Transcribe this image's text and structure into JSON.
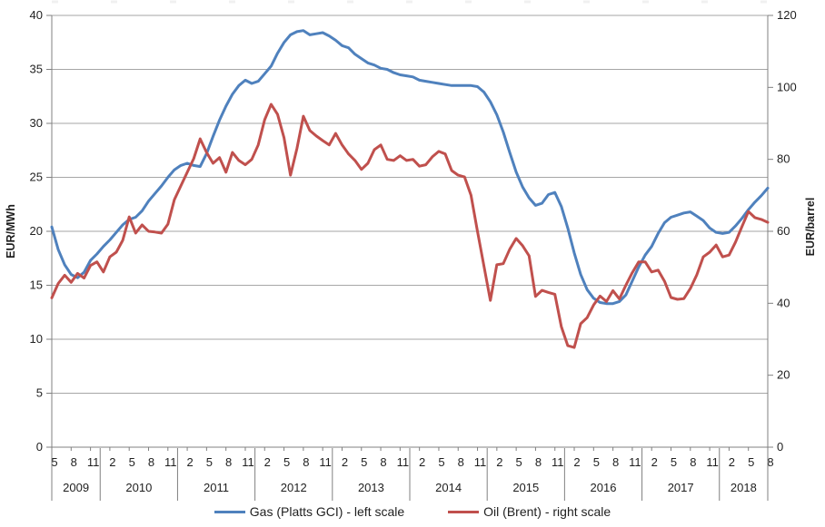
{
  "chart_data": {
    "type": "line",
    "title": "",
    "x_axis": {
      "start": "2009-05",
      "end": "2018-08",
      "points": 112,
      "tick_month_labels_by_year": [
        {
          "year": "2009",
          "months": [
            "5",
            "8",
            "11"
          ]
        },
        {
          "year": "2010",
          "months": [
            "2",
            "5",
            "8",
            "11"
          ]
        },
        {
          "year": "2011",
          "months": [
            "2",
            "5",
            "8",
            "11"
          ]
        },
        {
          "year": "2012",
          "months": [
            "2",
            "5",
            "8",
            "11"
          ]
        },
        {
          "year": "2013",
          "months": [
            "2",
            "5",
            "8",
            "11"
          ]
        },
        {
          "year": "2014",
          "months": [
            "2",
            "5",
            "8",
            "11"
          ]
        },
        {
          "year": "2015",
          "months": [
            "2",
            "5",
            "8",
            "11"
          ]
        },
        {
          "year": "2016",
          "months": [
            "2",
            "5",
            "8",
            "11"
          ]
        },
        {
          "year": "2017",
          "months": [
            "2",
            "5",
            "8",
            "11"
          ]
        },
        {
          "year": "2018",
          "months": [
            "2",
            "5",
            "8"
          ]
        }
      ]
    },
    "left_axis": {
      "title": "EUR/MWh",
      "min": 0,
      "max": 40,
      "step": 5,
      "tick_labels": [
        "0",
        "5",
        "10",
        "15",
        "20",
        "25",
        "30",
        "35",
        "40"
      ]
    },
    "right_axis": {
      "title": "EUR/barrel",
      "min": 0,
      "max": 120,
      "step": 20,
      "tick_labels": [
        "0",
        "20",
        "40",
        "60",
        "80",
        "100",
        "120"
      ]
    },
    "grid": "horizontal",
    "legend_position": "bottom",
    "colors": {
      "grid": "#a6a6a6",
      "axis": "#808080",
      "text": "#1f1f1f"
    },
    "series": [
      {
        "name": "Gas (Platts GCI) - left scale",
        "axis": "left",
        "color": "#4F81BD",
        "values": [
          20.4,
          18.3,
          16.9,
          16.0,
          15.7,
          16.2,
          17.3,
          17.9,
          18.6,
          19.2,
          19.9,
          20.6,
          21.1,
          21.3,
          21.9,
          22.8,
          23.5,
          24.2,
          25.0,
          25.7,
          26.1,
          26.3,
          26.1,
          26.0,
          27.2,
          28.8,
          30.3,
          31.6,
          32.7,
          33.5,
          34.0,
          33.7,
          33.9,
          34.6,
          35.3,
          36.5,
          37.5,
          38.2,
          38.5,
          38.6,
          38.2,
          38.3,
          38.4,
          38.1,
          37.7,
          37.2,
          37.0,
          36.4,
          36.0,
          35.6,
          35.4,
          35.1,
          35.0,
          34.7,
          34.5,
          34.4,
          34.3,
          34.0,
          33.9,
          33.8,
          33.7,
          33.6,
          33.5,
          33.5,
          33.5,
          33.5,
          33.4,
          32.9,
          32.0,
          30.8,
          29.2,
          27.3,
          25.5,
          24.1,
          23.1,
          22.4,
          22.6,
          23.4,
          23.6,
          22.3,
          20.3,
          18.0,
          16.0,
          14.6,
          13.8,
          13.4,
          13.3,
          13.3,
          13.5,
          14.1,
          15.4,
          16.7,
          17.8,
          18.6,
          19.8,
          20.8,
          21.3,
          21.5,
          21.7,
          21.8,
          21.4,
          21.0,
          20.3,
          19.9,
          19.8,
          19.9,
          20.5,
          21.2,
          22.0,
          22.7,
          23.3,
          24.0
        ]
      },
      {
        "name": "Oil (Brent) - right scale",
        "axis": "right",
        "color": "#C0504D",
        "values": [
          41.5,
          45.5,
          47.8,
          45.8,
          48.3,
          47.0,
          50.5,
          51.5,
          48.7,
          52.9,
          54.2,
          57.5,
          64.0,
          59.5,
          61.8,
          60.0,
          59.8,
          59.5,
          62.0,
          68.8,
          72.6,
          76.4,
          80.2,
          85.7,
          81.9,
          78.9,
          80.5,
          76.4,
          81.9,
          79.7,
          78.5,
          80.0,
          84.0,
          91.0,
          95.3,
          92.5,
          86.0,
          75.6,
          83.0,
          92.0,
          88.0,
          86.5,
          85.2,
          84.0,
          87.2,
          84.0,
          81.5,
          79.7,
          77.2,
          78.9,
          82.7,
          84.0,
          80.0,
          79.7,
          81.0,
          79.7,
          80.0,
          78.1,
          78.5,
          80.7,
          82.2,
          81.5,
          76.9,
          75.6,
          75.1,
          70.0,
          60.0,
          50.4,
          40.8,
          50.7,
          51.0,
          55.0,
          58.0,
          56.0,
          53.2,
          41.9,
          43.6,
          43.0,
          42.5,
          33.5,
          28.2,
          27.7,
          34.3,
          36.0,
          39.5,
          42.0,
          40.5,
          43.5,
          41.2,
          45.0,
          48.5,
          51.5,
          51.5,
          48.7,
          49.2,
          46.1,
          41.6,
          41.1,
          41.3,
          44.1,
          47.9,
          52.9,
          54.2,
          56.2,
          52.9,
          53.4,
          57.0,
          61.3,
          65.5,
          63.8,
          63.3,
          62.5
        ]
      }
    ]
  }
}
